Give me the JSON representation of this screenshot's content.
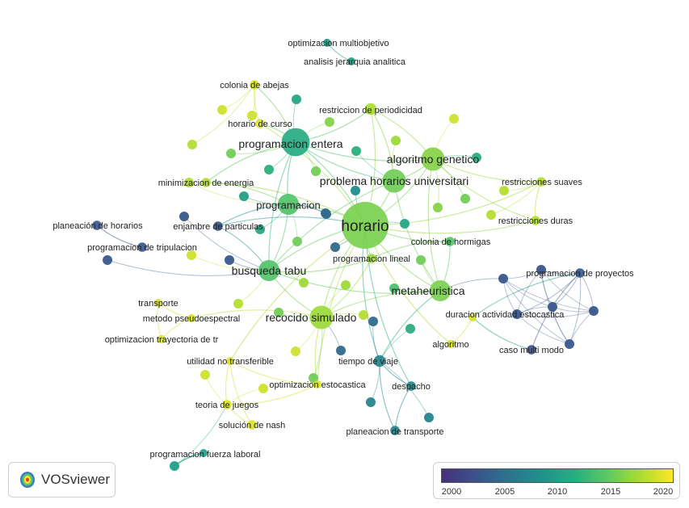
{
  "app": "VOSviewer",
  "legend": {
    "ticks": [
      "2000",
      "2005",
      "2010",
      "2015",
      "2020"
    ]
  },
  "palette": [
    "#46307e",
    "#3b528b",
    "#2c728e",
    "#21908d",
    "#27ad81",
    "#5cc863",
    "#aadc32",
    "#fde725"
  ],
  "nodes": [
    {
      "id": "horario",
      "label": "horario",
      "year": 2016.5,
      "weight": 10
    },
    {
      "id": "programacion_entera",
      "label": "programacion entera",
      "year": 2011.5,
      "weight": 6
    },
    {
      "id": "problema_horarios",
      "label": "problema horarios universitari",
      "year": 2016,
      "weight": 5
    },
    {
      "id": "algoritmo_genetico",
      "label": "algoritmo genetico",
      "year": 2017,
      "weight": 5
    },
    {
      "id": "programacion",
      "label": "programacion",
      "year": 2014.5,
      "weight": 4.5
    },
    {
      "id": "busqueda_tabu",
      "label": "busqueda tabu",
      "year": 2014.5,
      "weight": 4.5
    },
    {
      "id": "metaheuristica",
      "label": "metaheuristica",
      "year": 2016.5,
      "weight": 4.5
    },
    {
      "id": "recocido_simulado",
      "label": "recocido simulado",
      "year": 2018,
      "weight": 5
    },
    {
      "id": "colonia_hormigas",
      "label": "colonia de hormigas",
      "year": 2014.5,
      "weight": 2
    },
    {
      "id": "programacion_lineal",
      "label": "programacion lineal",
      "year": 2018,
      "weight": 2
    },
    {
      "id": "restriccion_periodicidad",
      "label": "restriccion de periodicidad",
      "year": 2018.5,
      "weight": 2.5
    },
    {
      "id": "minimizacion_energia",
      "label": "minimizacion de energia",
      "year": 2019,
      "weight": 2
    },
    {
      "id": "enjambre_particulas",
      "label": "enjambre de particulas",
      "year": 2002,
      "weight": 2
    },
    {
      "id": "restricciones_suaves",
      "label": "restricciones suaves",
      "year": 2019,
      "weight": 2
    },
    {
      "id": "restricciones_duras",
      "label": "restricciones duras",
      "year": 2019,
      "weight": 2
    },
    {
      "id": "colonia_abejas",
      "label": "colonia de abejas",
      "year": 2020.5,
      "weight": 2
    },
    {
      "id": "horario_curso",
      "label": "horario de curso",
      "year": 2020.5,
      "weight": 2
    },
    {
      "id": "optimizacion_multiobjetivo",
      "label": "optimizacion multiobjetivo",
      "year": 2010,
      "weight": 1.5
    },
    {
      "id": "analisis_jerarquia",
      "label": "analisis jerarquia analitica",
      "year": 2010,
      "weight": 1.5
    },
    {
      "id": "planeacion_horarios",
      "label": "planeación de horarios",
      "year": 2002,
      "weight": 2
    },
    {
      "id": "programacion_tripulacion",
      "label": "programacion de tripulacion",
      "year": 2002,
      "weight": 2
    },
    {
      "id": "programacion_proyectos",
      "label": "programacion de proyectos",
      "year": 2002,
      "weight": 2
    },
    {
      "id": "duracion_actividad",
      "label": "duracion actividad estocastica",
      "year": 2020.5,
      "weight": 1.5
    },
    {
      "id": "caso_multi_modo",
      "label": "caso multi modo",
      "year": 2002,
      "weight": 2
    },
    {
      "id": "algoritmo",
      "label": "algoritmo",
      "year": 2020.5,
      "weight": 1.5
    },
    {
      "id": "transporte",
      "label": "transporte",
      "year": 2020.5,
      "weight": 1.5
    },
    {
      "id": "metodo_pseudoespectral",
      "label": "metodo pseudoespectral",
      "year": 2020.5,
      "weight": 1.5
    },
    {
      "id": "optimizacion_trayectoria",
      "label": "optimizacion trayectoria de tr",
      "year": 2020.5,
      "weight": 1.5
    },
    {
      "id": "tiempo_viaje",
      "label": "tiempo de viaje",
      "year": 2007,
      "weight": 2.5
    },
    {
      "id": "utilidad_no_transferible",
      "label": "utilidad no transferible",
      "year": 2020.5,
      "weight": 1.5
    },
    {
      "id": "optimizacion_estocastica",
      "label": "optimizacion estocastica",
      "year": 2020.5,
      "weight": 1.5
    },
    {
      "id": "despacho",
      "label": "despacho",
      "year": 2007,
      "weight": 2
    },
    {
      "id": "teoria_juegos",
      "label": "teoria de juegos",
      "year": 2020.5,
      "weight": 2
    },
    {
      "id": "solucion_nash",
      "label": "solución de nash",
      "year": 2020.5,
      "weight": 2
    },
    {
      "id": "planeacion_transporte",
      "label": "planeacion de transporte",
      "year": 2007,
      "weight": 2
    },
    {
      "id": "programacion_fuerza",
      "label": "programacion fuerza laboral",
      "year": 2010,
      "weight": 1.5
    }
  ]
}
